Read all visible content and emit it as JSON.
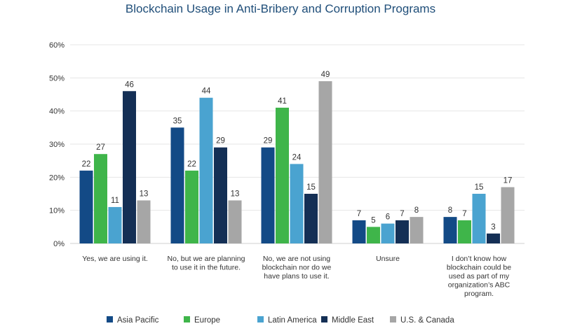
{
  "chart_data": {
    "type": "bar",
    "title": "Blockchain Usage in Anti-Bribery and Corruption Programs",
    "xlabel": "",
    "ylabel": "",
    "ylim": [
      0,
      60
    ],
    "yticks": [
      0,
      10,
      20,
      30,
      40,
      50,
      60
    ],
    "ytick_labels": [
      "0%",
      "10%",
      "20%",
      "30%",
      "40%",
      "50%",
      "60%"
    ],
    "categories": [
      [
        "Yes, we are using it."
      ],
      [
        "No, but we are planning",
        "to use it in the future."
      ],
      [
        "No, we are not using",
        "blockchain nor do we",
        "have plans to use it."
      ],
      [
        "Unsure"
      ],
      [
        "I don’t know how",
        "blockchain could be",
        "used as part of my",
        "organization’s ABC",
        "program."
      ]
    ],
    "series": [
      {
        "name": "Asia Pacific",
        "color": "#134a86",
        "values": [
          22,
          35,
          29,
          7,
          8
        ]
      },
      {
        "name": "Europe",
        "color": "#3fb54a",
        "values": [
          27,
          22,
          41,
          5,
          7
        ]
      },
      {
        "name": "Latin America",
        "color": "#4aa3d0",
        "values": [
          11,
          44,
          24,
          6,
          15
        ]
      },
      {
        "name": "Middle East",
        "color": "#142f55",
        "values": [
          46,
          29,
          15,
          7,
          3
        ]
      },
      {
        "name": "U.S. & Canada",
        "color": "#a6a6a6",
        "values": [
          13,
          13,
          49,
          8,
          17
        ]
      }
    ],
    "legend_position": "bottom",
    "grid": true
  }
}
